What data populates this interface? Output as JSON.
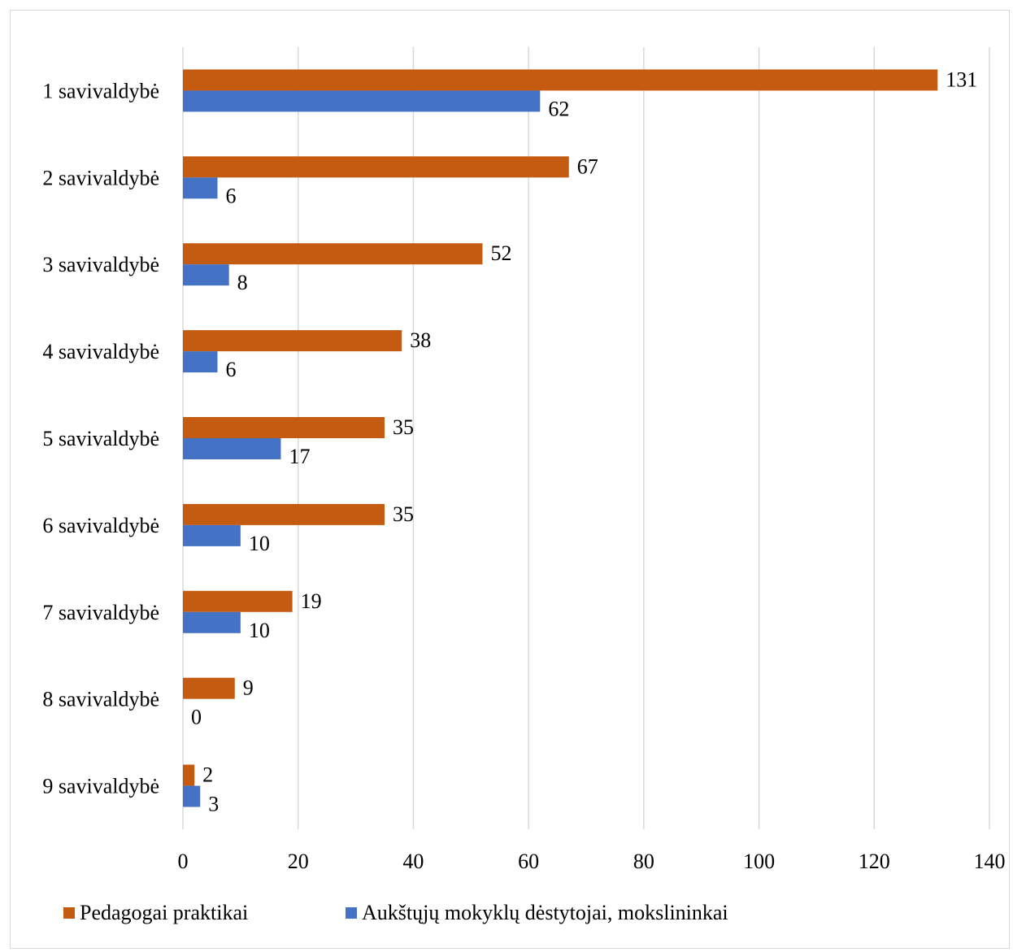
{
  "chart_data": {
    "type": "bar",
    "orientation": "horizontal",
    "categories": [
      "1 savivaldybė",
      "2 savivaldybė",
      "3 savivaldybė",
      "4 savivaldybė",
      "5 savivaldybė",
      "6 savivaldybė",
      "7 savivaldybė",
      "8 savivaldybė",
      "9 savivaldybė"
    ],
    "series": [
      {
        "name": "Pedagogai praktikai",
        "color": "#C55A11",
        "values": [
          131,
          67,
          52,
          38,
          35,
          35,
          19,
          9,
          2
        ]
      },
      {
        "name": "Aukštųjų mokyklų dėstytojai, mokslininkai",
        "color": "#4472C4",
        "values": [
          62,
          6,
          8,
          6,
          17,
          10,
          10,
          0,
          3
        ]
      }
    ],
    "xlim": [
      0,
      140
    ],
    "xticks": [
      "0",
      "20",
      "40",
      "60",
      "80",
      "100",
      "120",
      "140"
    ],
    "grid": true,
    "legend_position": "bottom",
    "title": "",
    "xlabel": "",
    "ylabel": ""
  }
}
